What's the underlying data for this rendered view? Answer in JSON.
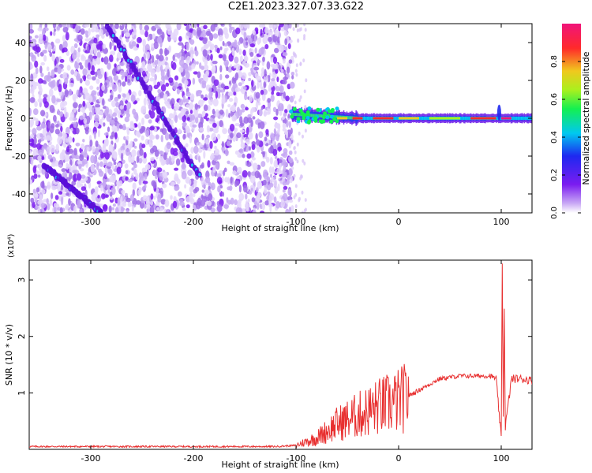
{
  "title": "C2E1.2023.327.07.33.G22",
  "chart_data": [
    {
      "type": "heatmap",
      "xlabel": "Height of straight line (km)",
      "ylabel": "Frequency (Hz)",
      "xlim": [
        -360,
        130
      ],
      "ylim": [
        -50,
        50
      ],
      "xticks": [
        -300,
        -200,
        -100,
        0,
        100
      ],
      "yticks": [
        -40,
        -20,
        0,
        20,
        40
      ],
      "colorbar": {
        "label": "Normalized spectral amplitude",
        "range": [
          0,
          1
        ],
        "ticks": [
          0.0,
          0.2,
          0.4,
          0.6,
          0.8
        ],
        "colors": [
          "#ffffff",
          "#9d6be8",
          "#7b1cf0",
          "#1e28f0",
          "#00c8f0",
          "#14f050",
          "#aaf01e",
          "#f0c81e",
          "#ff2a2a",
          "#f0147a"
        ]
      },
      "features": [
        {
          "name": "descending streak A",
          "x": [
            -285,
            -195
          ],
          "y": [
            50,
            -30
          ]
        },
        {
          "name": "descending streak B",
          "x": [
            -345,
            -290
          ],
          "y": [
            -25,
            -50
          ]
        },
        {
          "name": "carrier line",
          "x": [
            -105,
            130
          ],
          "y": [
            0,
            0
          ]
        }
      ]
    },
    {
      "type": "line",
      "xlabel": "Height of straight line (km)",
      "ylabel": "SNR (10 * v/v)",
      "yscale_label": "(x10⁴)",
      "xlim": [
        -360,
        130
      ],
      "ylim": [
        0,
        3.35
      ],
      "xticks": [
        -300,
        -200,
        -100,
        0,
        100
      ],
      "yticks": [
        1,
        2,
        3
      ],
      "series_color": "#e83030",
      "x": [
        -360,
        -300,
        -200,
        -120,
        -100,
        -80,
        -60,
        -40,
        -20,
        0,
        20,
        40,
        60,
        80,
        90,
        95,
        100,
        101,
        102,
        103,
        104,
        110,
        120,
        130
      ],
      "y": [
        0.05,
        0.05,
        0.05,
        0.05,
        0.07,
        0.2,
        0.45,
        0.6,
        0.75,
        0.85,
        1.05,
        1.25,
        1.3,
        1.3,
        1.3,
        1.25,
        0.2,
        3.3,
        0.6,
        2.5,
        0.4,
        1.25,
        1.25,
        1.22
      ]
    }
  ]
}
